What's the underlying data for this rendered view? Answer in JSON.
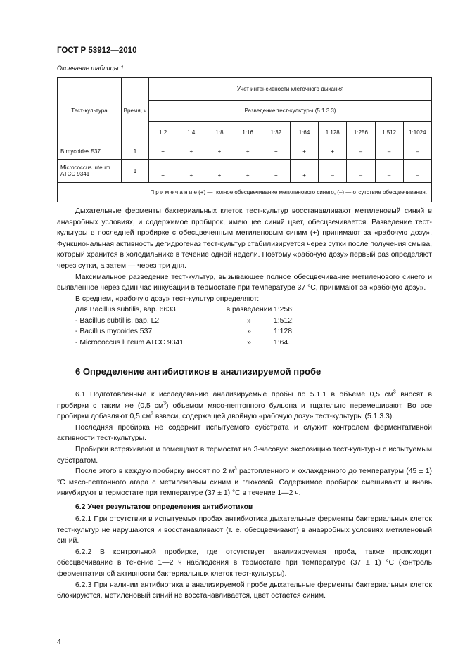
{
  "header": "ГОСТ Р 53912—2010",
  "table_caption": "Окончание таблицы 1",
  "table": {
    "col_culture": "Тест-культура",
    "col_time": "Время, ч",
    "group_header": "Учет интенсивности клеточного дыхания",
    "sub_header": "Разведение тест-культуры (5.1.3.3)",
    "dilutions": [
      "1:2",
      "1:4",
      "1:8",
      "1:16",
      "1:32",
      "1:64",
      "1.128",
      "1:256",
      "1:512",
      "1:1024"
    ],
    "rows": [
      {
        "culture": "B.mycoides 537",
        "time": "1",
        "values": [
          "+",
          "+",
          "+",
          "+",
          "+",
          "+",
          "+",
          "–",
          "–",
          "–"
        ]
      },
      {
        "culture": "Micrococcus luteum ATCC 9341",
        "time": "1",
        "values": [
          "+",
          "+",
          "+",
          "+",
          "+",
          "+",
          "–",
          "–",
          "–",
          "–"
        ]
      }
    ],
    "note": "П р и м е ч а н и е  (+) — полное обесцвечивание метиленового синего, (–) — отсутствие обесцвечивания."
  },
  "paragraphs": [
    "Дыхательные ферменты бактериальных клеток тест-культур восстанавливают метиленовый синий в анаэробных условиях, и содержимое пробирок, имеющее синий цвет, обесцвечивается. Разведение тест-культуры в последней пробирке с обесцвеченным метиленовым синим (+) принимают за «рабочую дозу». Функциональная активность дегидрогеназ тест-культур стабилизируется через сутки после получения смыва, который хранится в холодильнике в течение одной недели. Поэтому «рабочую дозу» первый раз определяют через сутки, а затем — через три дня.",
    "Максимальное разведение тест-культур, вызывающее полное обесцвечивание метиленового синего и выявленное через один час инкубации в термостате при температуре 37 °С, принимают за «рабочую дозу».",
    "В среднем, «рабочую дозу» тест-культур определяют:"
  ],
  "dose_list": [
    {
      "name": "для Bacillus subtilis, вар. 6633",
      "mark": "в разведении",
      "value": "1:256;"
    },
    {
      "name": "- Bacillus subtillis, вар. L2",
      "mark": "»",
      "value": "1:512;"
    },
    {
      "name": "- Bacillus mycoides 537",
      "mark": "»",
      "value": "1:128;"
    },
    {
      "name": "- Micrococcus luteum ATCC 9341",
      "mark": "»",
      "value": "1:64."
    }
  ],
  "section6": {
    "title": "6  Определение антибиотиков в анализируемой пробе",
    "p61_a": "6.1  Подготовленные к исследованию анализируемые пробы по 5.1.1 в объеме 0,5 см",
    "p61_b": " вносят в пробирки с таким же (0,5 см",
    "p61_c": ") объемом мясо-пептонного бульона и тщательно перемешивают. Во все пробирки добавляют 0,5 см",
    "p61_d": " взвеси, содержащей двойную «рабочую дозу» тест-культуры (5.1.3.3).",
    "sup": "3",
    "p_last": "Последняя пробирка не содержит испытуемого субстрата и служит контролем ферментативной активности тест-культуры.",
    "p_shake": "Пробирки встряхивают и помещают в термостат на 3-часовую экспозицию тест-культуры с  испытуемым субстратом.",
    "p_after_a": "После этого в каждую пробирку вносят по 2 м",
    "p_after_b": " растопленного и охлажденного до температуры (45 ± 1) °С мясо-пептонного агара с метиленовым синим и глюкозой. Содержимое пробирок смешивают и вновь инкубируют в термостате при температуре (37 ± 1) °С в течение 1—2 ч.",
    "sub_title": "6.2  Учет результатов определения антибиотиков",
    "p621": "6.2.1  При отсутствии в испытуемых пробах антибиотика дыхательные ферменты бактериальных клеток тест-культур не нарушаются и восстанавливают (т. е. обесцвечивают) в анаэробных условиях метиленовый синий.",
    "p622": "6.2.2  В контрольной пробирке, где отсутствует анализируемая проба, также происходит обесцвечивание в течение 1—2 ч наблюдения в термостате при температуре (37 ± 1) °С (контроль ферментативной активности бактериальных клеток тест-культуры).",
    "p623": "6.2.3  При наличии антибиотика в анализируемой пробе дыхательные ферменты бактериальных клеток блокируются, метиленовый синий не восстанавливается, цвет остается синим."
  },
  "page_number": "4"
}
